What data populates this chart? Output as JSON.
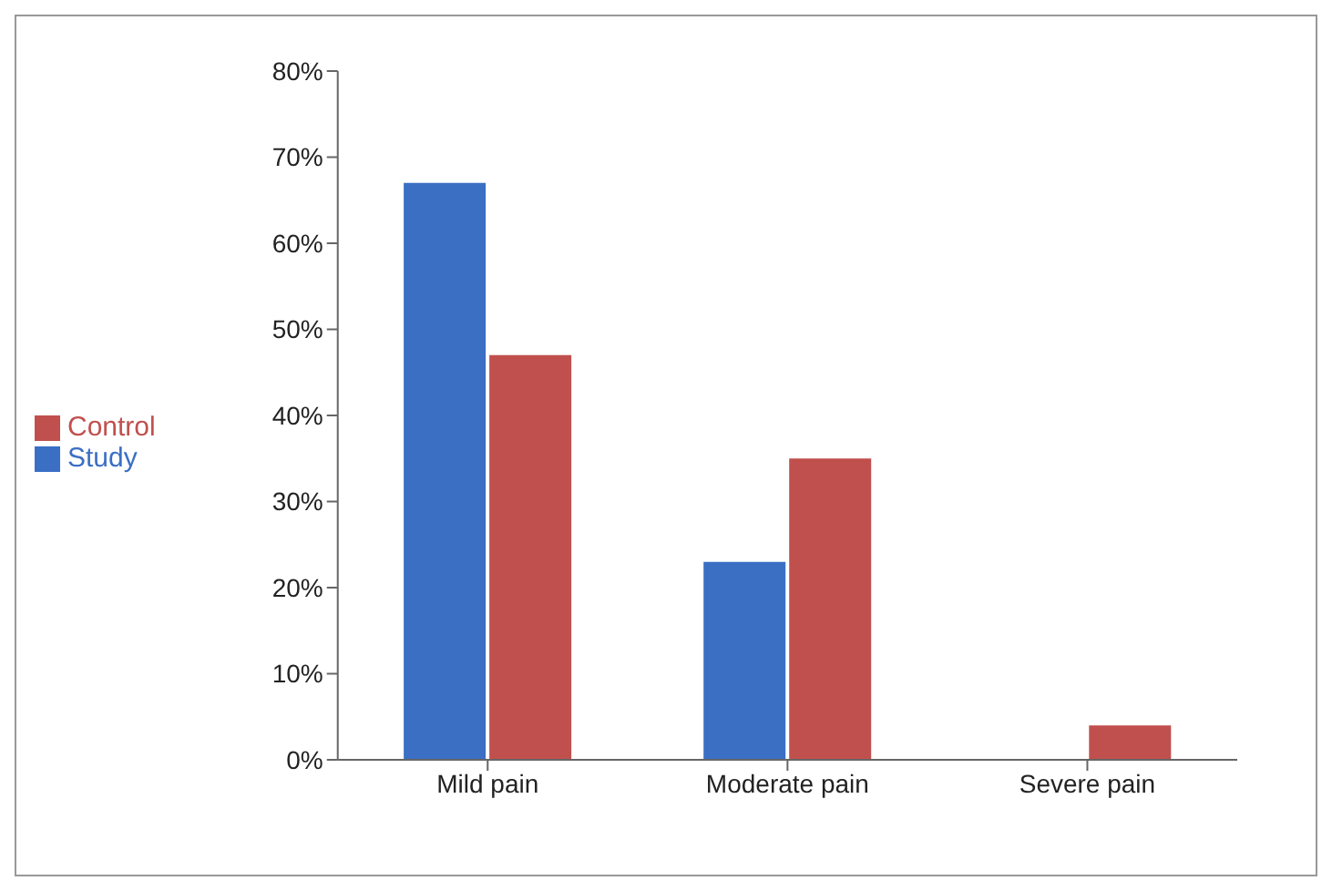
{
  "chart_data": {
    "type": "bar",
    "categories": [
      "Mild pain",
      "Moderate pain",
      "Severe pain"
    ],
    "series": [
      {
        "name": "Study",
        "color": "#3a6fc4",
        "values": [
          67,
          23,
          0
        ]
      },
      {
        "name": "Control",
        "color": "#c0504d",
        "values": [
          47,
          35,
          4
        ]
      }
    ],
    "ylim": [
      0,
      80
    ],
    "yticks": [
      {
        "value": 0,
        "label": "0%"
      },
      {
        "value": 10,
        "label": "10%"
      },
      {
        "value": 20,
        "label": "20%"
      },
      {
        "value": 30,
        "label": "30%"
      },
      {
        "value": 40,
        "label": "40%"
      },
      {
        "value": 50,
        "label": "50%"
      },
      {
        "value": 60,
        "label": "60%"
      },
      {
        "value": 70,
        "label": "70%"
      },
      {
        "value": 80,
        "label": "80%"
      }
    ],
    "grid": false,
    "legend": "left"
  }
}
